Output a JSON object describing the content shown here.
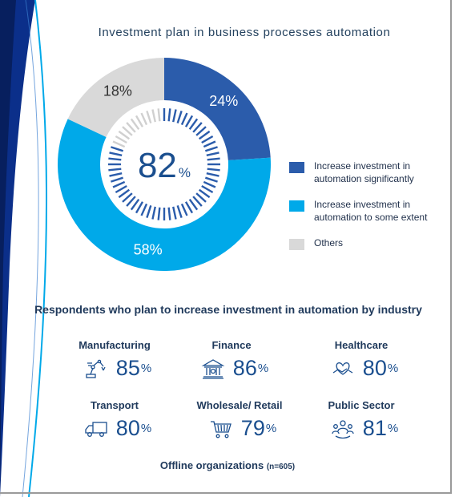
{
  "colors": {
    "dark_blue": "#2b5cab",
    "light_blue": "#00a9e9",
    "gray": "#d9d9d9",
    "text_blue": "#1b4f8f",
    "decoration_navy": "#0b2f8a"
  },
  "chart_data": {
    "type": "pie",
    "donut": true,
    "title": "Investment plan in business processes automation",
    "center_value": "82",
    "center_unit": "%",
    "slices": [
      {
        "label": "Increase investment in\nautomation significantly",
        "value": 24,
        "display": "24%",
        "color": "#2b5cab"
      },
      {
        "label": "Increase investment in\nautomation to some extent",
        "value": 58,
        "display": "58%",
        "color": "#00a9e9"
      },
      {
        "label": "Others",
        "value": 18,
        "display": "18%",
        "color": "#d9d9d9"
      }
    ],
    "legend_position": "right"
  },
  "industries": {
    "title": "Respondents who plan to increase investment in automation by industry",
    "unit": "%",
    "items": [
      {
        "name": "Manufacturing",
        "value": "85",
        "icon": "robot-arm-icon"
      },
      {
        "name": "Finance",
        "value": "86",
        "icon": "bank-icon"
      },
      {
        "name": "Healthcare",
        "value": "80",
        "icon": "heart-hand-icon"
      },
      {
        "name": "Transport",
        "value": "80",
        "icon": "truck-icon"
      },
      {
        "name": "Wholesale/ Retail",
        "value": "79",
        "icon": "shopping-cart-icon"
      },
      {
        "name": "Public Sector",
        "value": "81",
        "icon": "people-icon"
      }
    ]
  },
  "footnote": {
    "text": "Offline organizations",
    "n": "(n=605)"
  }
}
